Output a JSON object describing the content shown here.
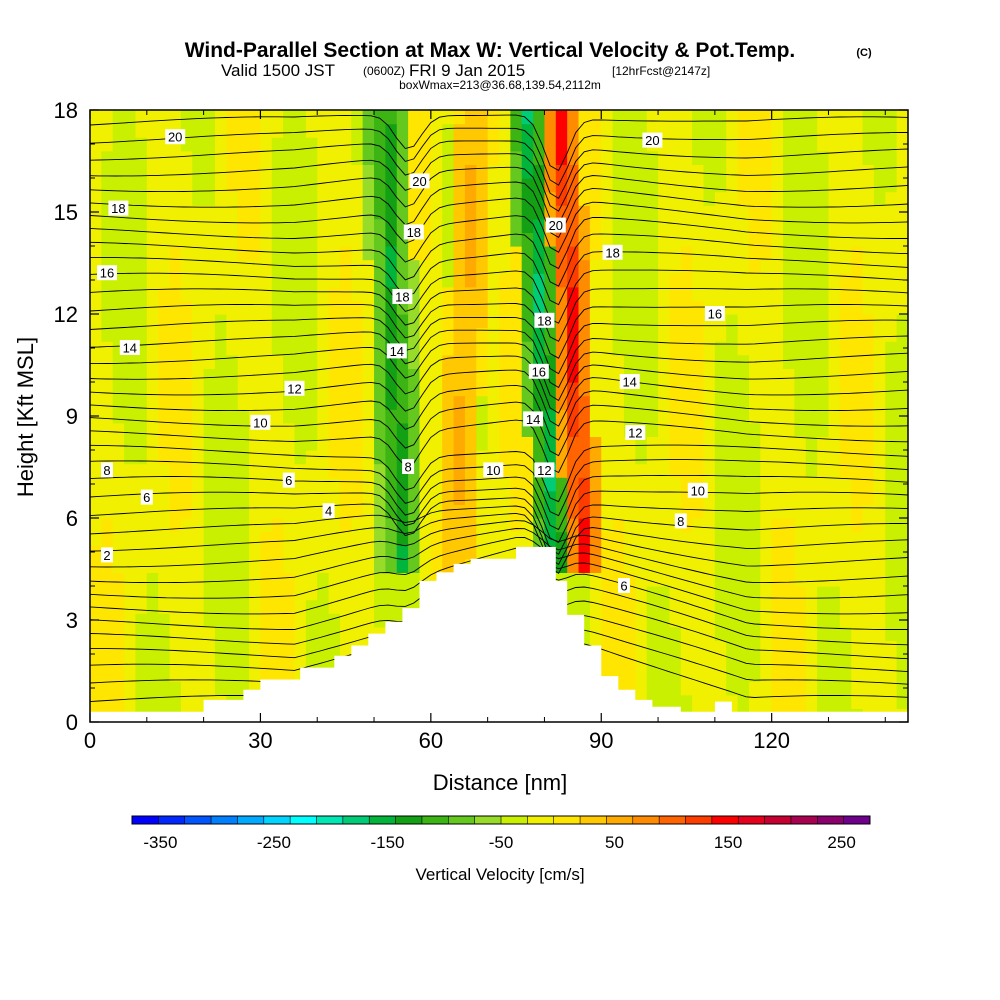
{
  "title": {
    "main": "Wind-Parallel Section at Max W: Vertical Velocity & Pot.Temp.",
    "copyright": "(C)",
    "valid_prefix": "Valid 1500 JST",
    "valid_utc": "(0600Z)",
    "valid_date": "FRI 9 Jan 2015",
    "forecast": "[12hrFcst@2147z]",
    "box": "boxWmax=213@36.68,139.54,2112m"
  },
  "chart_data": {
    "type": "heatmap",
    "xlabel": "Distance [nm]",
    "ylabel": "Height [Kft MSL]",
    "xlim": [
      0,
      144
    ],
    "ylim": [
      0,
      18
    ],
    "x_ticks": [
      0,
      30,
      60,
      90,
      120
    ],
    "y_ticks": [
      0,
      3,
      6,
      9,
      12,
      15,
      18
    ],
    "x_tick_labels": [
      "0",
      "30",
      "60",
      "90",
      "120"
    ],
    "y_tick_labels": [
      "0",
      "3",
      "6",
      "9",
      "12",
      "15",
      "18"
    ],
    "terrain_profile": {
      "x": [
        0,
        20,
        20,
        27,
        27,
        30,
        30,
        37,
        37,
        43,
        43,
        46,
        46,
        49,
        49,
        52,
        52,
        55,
        55,
        58,
        58,
        61,
        61,
        64,
        64,
        67,
        67,
        72,
        72,
        75,
        75,
        78,
        78,
        82,
        82,
        84,
        84,
        87,
        87,
        90,
        90,
        93,
        93,
        96,
        96,
        99,
        99,
        104,
        104,
        110,
        110,
        113,
        113,
        126,
        126,
        144
      ],
      "y": [
        0.3,
        0.3,
        0.65,
        0.65,
        0.95,
        0.95,
        1.25,
        1.25,
        1.6,
        1.6,
        1.95,
        1.95,
        2.25,
        2.25,
        2.6,
        2.6,
        2.95,
        2.95,
        3.35,
        3.35,
        4.15,
        4.15,
        4.4,
        4.4,
        4.65,
        4.65,
        4.8,
        4.8,
        4.8,
        4.8,
        5.15,
        5.15,
        5.15,
        5.15,
        4.15,
        4.15,
        3.15,
        3.15,
        2.25,
        2.25,
        1.35,
        1.35,
        0.95,
        0.95,
        0.65,
        0.65,
        0.45,
        0.45,
        0.3,
        0.3,
        0.6,
        0.6,
        0.3,
        0.3,
        0.3,
        0.3
      ]
    },
    "velocity_bands": [
      {
        "x_bottom": 55,
        "x_top": 52,
        "value": -80,
        "halfwidth": 4
      },
      {
        "x_bottom": 55,
        "x_top": 52,
        "value": -130,
        "halfwidth": 1.8
      },
      {
        "x_bottom": 64,
        "x_top": 68,
        "value": 80,
        "halfwidth": 3.5
      },
      {
        "x_bottom": 82,
        "x_top": 77,
        "value": -110,
        "halfwidth": 3.5
      },
      {
        "x_bottom": 82,
        "x_top": 77,
        "value": -160,
        "halfwidth": 1.6
      },
      {
        "x_bottom": 87,
        "x_top": 83,
        "value": 160,
        "halfwidth": 3.2
      },
      {
        "x_bottom": 87,
        "x_top": 83,
        "value": 200,
        "halfwidth": 1.5
      }
    ],
    "potential_temperature_labels": [
      {
        "x": 3,
        "y": 4.9,
        "text": "2"
      },
      {
        "x": 42,
        "y": 6.2,
        "text": "4"
      },
      {
        "x": 94,
        "y": 4.0,
        "text": "6"
      },
      {
        "x": 10,
        "y": 6.6,
        "text": "6"
      },
      {
        "x": 3,
        "y": 7.4,
        "text": "8"
      },
      {
        "x": 35,
        "y": 7.1,
        "text": "6"
      },
      {
        "x": 56,
        "y": 7.5,
        "text": "8"
      },
      {
        "x": 104,
        "y": 5.9,
        "text": "8"
      },
      {
        "x": 30,
        "y": 8.8,
        "text": "10"
      },
      {
        "x": 71,
        "y": 7.4,
        "text": "10"
      },
      {
        "x": 107,
        "y": 6.8,
        "text": "10"
      },
      {
        "x": 36,
        "y": 9.8,
        "text": "12"
      },
      {
        "x": 80,
        "y": 7.4,
        "text": "12"
      },
      {
        "x": 96,
        "y": 8.5,
        "text": "12"
      },
      {
        "x": 7,
        "y": 11.0,
        "text": "14"
      },
      {
        "x": 54,
        "y": 10.9,
        "text": "14"
      },
      {
        "x": 78,
        "y": 8.9,
        "text": "14"
      },
      {
        "x": 95,
        "y": 10.0,
        "text": "14"
      },
      {
        "x": 3,
        "y": 13.2,
        "text": "16"
      },
      {
        "x": 79,
        "y": 10.3,
        "text": "16"
      },
      {
        "x": 110,
        "y": 12.0,
        "text": "16"
      },
      {
        "x": 55,
        "y": 12.5,
        "text": "18"
      },
      {
        "x": 80,
        "y": 11.8,
        "text": "18"
      },
      {
        "x": 92,
        "y": 13.8,
        "text": "18"
      },
      {
        "x": 5,
        "y": 15.1,
        "text": "18"
      },
      {
        "x": 57,
        "y": 14.4,
        "text": "18"
      },
      {
        "x": 58,
        "y": 15.9,
        "text": "20"
      },
      {
        "x": 82,
        "y": 14.6,
        "text": "20"
      },
      {
        "x": 15,
        "y": 17.2,
        "text": "20"
      },
      {
        "x": 99,
        "y": 17.1,
        "text": "20"
      }
    ],
    "colorbar": {
      "label": "Vertical Velocity [cm/s]",
      "min": -375,
      "max": 275,
      "step": 25,
      "tick_values": [
        -350,
        -250,
        -150,
        -50,
        50,
        150,
        250
      ],
      "tick_labels": [
        "-350",
        "-250",
        "-150",
        "-50",
        "50",
        "150",
        "250"
      ],
      "colors": [
        "#0000ff",
        "#0028ff",
        "#0055ff",
        "#0080ff",
        "#00aaff",
        "#00d4ff",
        "#00ffff",
        "#00e6b4",
        "#00cc78",
        "#00b43c",
        "#14a014",
        "#3cb414",
        "#64c81e",
        "#96dc28",
        "#c8f000",
        "#f0f000",
        "#ffe600",
        "#ffc800",
        "#ffaa00",
        "#ff8c00",
        "#ff6400",
        "#ff3c00",
        "#ff0000",
        "#e6001e",
        "#c80032",
        "#aa0050",
        "#8c006e",
        "#6e008c"
      ]
    }
  }
}
